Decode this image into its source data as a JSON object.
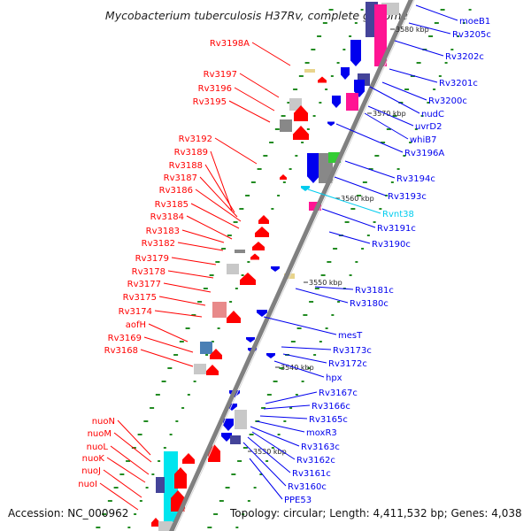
{
  "title": "Mycobacterium tuberculosis H37Rv, complete genome",
  "footer": {
    "accession": "Accession: NC_000962",
    "topology": "Topology: circular; Length: 4,411,532 bp; Genes: 4,038"
  },
  "colors": {
    "left_strand": "#ff0000",
    "right_strand": "#0000ee",
    "ncrna": "#00ccee",
    "backbone": "#808080",
    "tick": "#228b22",
    "magenta": "#ff1493",
    "cyan": "#00e5ee",
    "green": "#33cc33",
    "navy": "#444499",
    "grey": "#888888",
    "light_grey": "#c8c8c8",
    "khaki": "#e8d48c",
    "pink": "#e88a8a",
    "steel": "#4a7fb5"
  },
  "kbp_marks": [
    "3580 kbp",
    "3570 kbp",
    "3560 kbp",
    "3550 kbp",
    "3540 kbp",
    "3530 kbp"
  ],
  "left_genes": [
    "Rv3198A",
    "Rv3197",
    "Rv3196",
    "Rv3195",
    "Rv3192",
    "Rv3189",
    "Rv3188",
    "Rv3187",
    "Rv3186",
    "Rv3185",
    "Rv3184",
    "Rv3183",
    "Rv3182",
    "Rv3179",
    "Rv3178",
    "Rv3177",
    "Rv3175",
    "Rv3174",
    "aofH",
    "Rv3169",
    "Rv3168",
    "nuoN",
    "nuoM",
    "nuoL",
    "nuoK",
    "nuoJ",
    "nuoI"
  ],
  "right_genes": [
    "moeB1",
    "Rv3205c",
    "Rv3202c",
    "Rv3201c",
    "Rv3200c",
    "nudC",
    "uvrD2",
    "whiB7",
    "Rv3196A",
    "Rv3194c",
    "Rv3193c",
    "Rvnt38",
    "Rv3191c",
    "Rv3190c",
    "Rv3181c",
    "Rv3180c",
    "mesT",
    "Rv3173c",
    "Rv3172c",
    "hpx",
    "Rv3167c",
    "Rv3166c",
    "Rv3165c",
    "moxR3",
    "Rv3163c",
    "Rv3162c",
    "Rv3161c",
    "Rv3160c",
    "PPE53"
  ]
}
